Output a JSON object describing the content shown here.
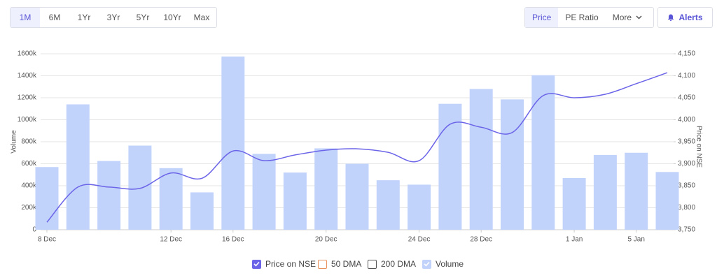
{
  "tabs": [
    "1M",
    "6M",
    "1Yr",
    "3Yr",
    "5Yr",
    "10Yr",
    "Max"
  ],
  "views": [
    "Price",
    "PE Ratio",
    "More"
  ],
  "alerts": "Alerts",
  "chart_data": {
    "type": "combo",
    "categories": [
      "8 Dec",
      null,
      null,
      null,
      "12 Dec",
      null,
      "16 Dec",
      null,
      null,
      "20 Dec",
      null,
      null,
      "24 Dec",
      null,
      "28 Dec",
      null,
      null,
      "1 Jan",
      null,
      "5 Jan",
      null
    ],
    "series": [
      {
        "name": "Price on NSE",
        "type": "line",
        "axis": "y2",
        "color": "#6b64e8",
        "visible": true,
        "values": [
          3767,
          3847,
          3847,
          3844,
          3879,
          3867,
          3929,
          3907,
          3920,
          3931,
          3934,
          3926,
          3907,
          3990,
          3983,
          3971,
          4055,
          4050,
          4058,
          4082,
          4107
        ]
      },
      {
        "name": "50 DMA",
        "color": "#e8915c",
        "visible": false
      },
      {
        "name": "200 DMA",
        "color": "#555555",
        "visible": false
      },
      {
        "name": "Volume",
        "type": "bar",
        "color": "#c2d3fb",
        "visible": true,
        "values": [
          570000,
          1140000,
          625000,
          765000,
          560000,
          340000,
          1575000,
          690000,
          520000,
          740000,
          600000,
          450000,
          410000,
          1145000,
          1280000,
          1185000,
          1405000,
          470000,
          680000,
          700000,
          525000
        ]
      }
    ],
    "ylabel": "Volume",
    "y2label": "Price on NSE",
    "ylim": [
      0,
      1600000
    ],
    "yticks": [
      0,
      {
        "value": 200000,
        "label": "200k"
      },
      {
        "value": 400000,
        "label": "400k"
      },
      {
        "value": 600000,
        "label": "600k"
      },
      {
        "value": 800000,
        "label": "800k"
      },
      {
        "value": 1000000,
        "label": "1000k"
      },
      {
        "value": 1200000,
        "label": "1200k"
      },
      {
        "value": 1400000,
        "label": "1400k"
      },
      {
        "value": 1600000,
        "label": "1600k"
      }
    ],
    "y2lim": [
      3750,
      4150
    ],
    "y2ticks": [
      {
        "value": 3750,
        "label": "3,750"
      },
      {
        "value": 3800,
        "label": "3,800"
      },
      {
        "value": 3850,
        "label": "3,850"
      },
      {
        "value": 3900,
        "label": "3,900"
      },
      {
        "value": 3950,
        "label": "3,950"
      },
      {
        "value": 4000,
        "label": "4,000"
      },
      {
        "value": 4050,
        "label": "4,050"
      },
      {
        "value": 4100,
        "label": "4,100"
      },
      {
        "value": 4150,
        "label": "4,150"
      }
    ],
    "grid": true
  }
}
